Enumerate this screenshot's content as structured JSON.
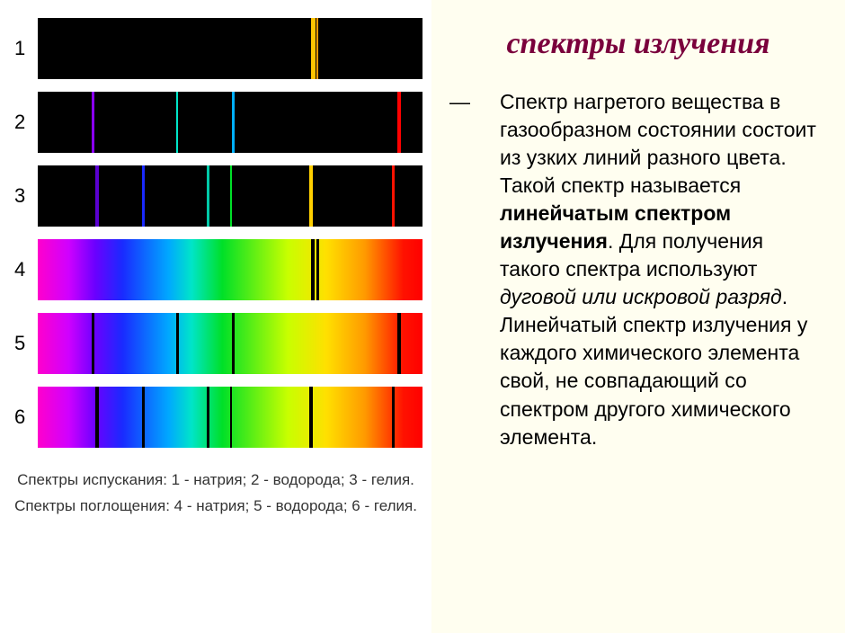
{
  "colors": {
    "page_bg": "#fffef0",
    "left_bg": "#ffffff",
    "title_color": "#7a003c",
    "body_text_color": "#000000"
  },
  "title": {
    "text": "спектры излучения",
    "fontsize": 34
  },
  "body": {
    "fontsize": 23,
    "pre": "Спектр нагретого вещества в газообразном состоянии состоит из узких линий разного цвета. Такой спектр называется ",
    "bold1": "линейчатым спектром излучения",
    "mid1": ". Для получения такого спектра используют ",
    "italic1": "дуговой или искровой разряд",
    "post": ". Линейчатый спектр излучения у каждого химического элемента свой, не совпадающий со спектром другого химического элемента."
  },
  "spectra": [
    {
      "n": "1",
      "type": "emission",
      "lines": [
        {
          "pos": 71,
          "w": 5,
          "color": "#ffc400"
        },
        {
          "pos": 72.5,
          "w": 2,
          "color": "#ff9a00"
        }
      ]
    },
    {
      "n": "2",
      "type": "emission",
      "lines": [
        {
          "pos": 14,
          "w": 3,
          "color": "#8a00ff"
        },
        {
          "pos": 36,
          "w": 2,
          "color": "#00e5c8"
        },
        {
          "pos": 50.5,
          "w": 3,
          "color": "#00b0ff"
        },
        {
          "pos": 93.5,
          "w": 4,
          "color": "#ff0000"
        }
      ]
    },
    {
      "n": "3",
      "type": "emission",
      "lines": [
        {
          "pos": 15,
          "w": 4,
          "color": "#5a00d0"
        },
        {
          "pos": 27,
          "w": 3,
          "color": "#1a2aff"
        },
        {
          "pos": 44,
          "w": 3,
          "color": "#00c8a8"
        },
        {
          "pos": 50,
          "w": 2,
          "color": "#00e028"
        },
        {
          "pos": 70.5,
          "w": 4,
          "color": "#ffd000"
        },
        {
          "pos": 92,
          "w": 3,
          "color": "#ff1200"
        }
      ]
    },
    {
      "n": "4",
      "type": "absorption",
      "lines": [
        {
          "pos": 71,
          "w": 4,
          "color": "#000000"
        },
        {
          "pos": 72.5,
          "w": 3,
          "color": "#000000"
        }
      ]
    },
    {
      "n": "5",
      "type": "absorption",
      "lines": [
        {
          "pos": 14,
          "w": 3,
          "color": "#000000"
        },
        {
          "pos": 36,
          "w": 3,
          "color": "#000000"
        },
        {
          "pos": 50.5,
          "w": 3,
          "color": "#000000"
        },
        {
          "pos": 93.5,
          "w": 4,
          "color": "#000000"
        }
      ]
    },
    {
      "n": "6",
      "type": "absorption",
      "lines": [
        {
          "pos": 15,
          "w": 4,
          "color": "#000000"
        },
        {
          "pos": 27,
          "w": 3,
          "color": "#000000"
        },
        {
          "pos": 44,
          "w": 3,
          "color": "#000000"
        },
        {
          "pos": 50,
          "w": 2,
          "color": "#000000"
        },
        {
          "pos": 70.5,
          "w": 4,
          "color": "#000000"
        },
        {
          "pos": 92,
          "w": 3,
          "color": "#000000"
        }
      ]
    }
  ],
  "captions": {
    "line1": "Спектры испускания: 1 - натрия; 2 - водорода; 3 - гелия.",
    "line2": "Спектры поглощения: 4 - натрия; 5 - водорода; 6 - гелия."
  }
}
